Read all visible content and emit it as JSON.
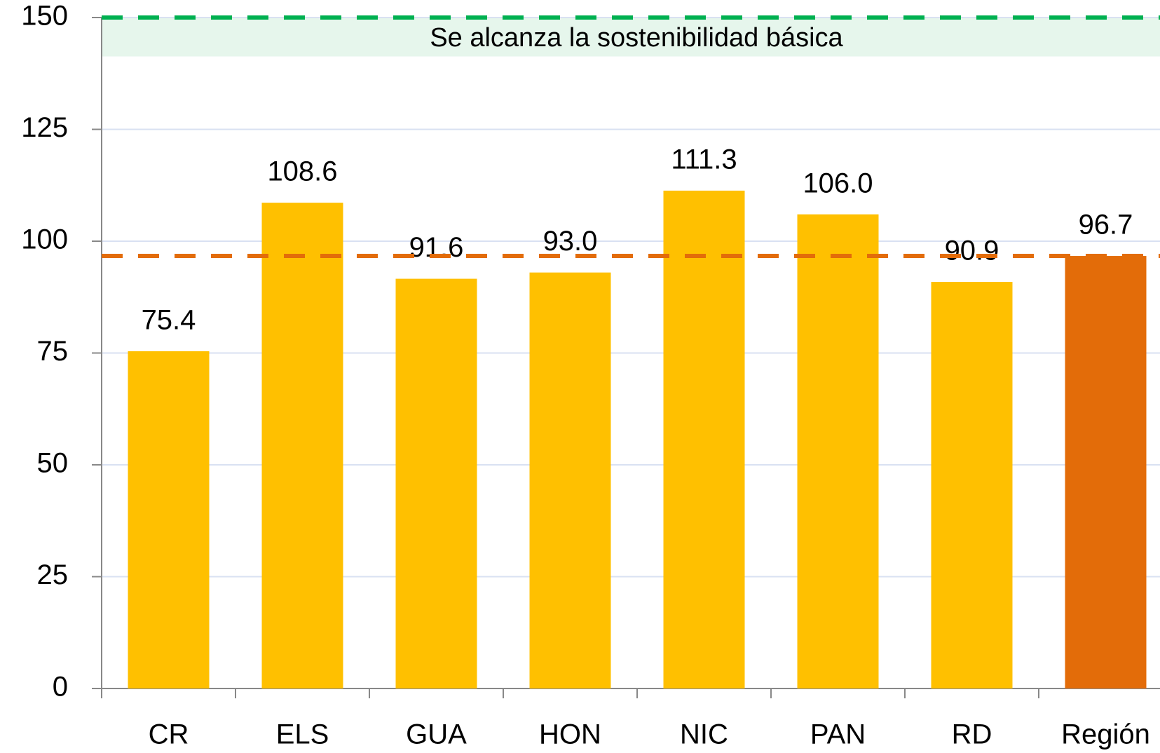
{
  "chart_data": {
    "type": "bar",
    "categories": [
      "CR",
      "ELS",
      "GUA",
      "HON",
      "NIC",
      "PAN",
      "RD",
      "Región"
    ],
    "values": [
      75.4,
      108.6,
      91.6,
      93.0,
      111.3,
      106.0,
      90.9,
      96.7
    ],
    "value_labels": [
      "75.4",
      "108.6",
      "91.6",
      "93.0",
      "111.3",
      "106.0",
      "90.9",
      "96.7"
    ],
    "colors": [
      "#FFC000",
      "#FFC000",
      "#FFC000",
      "#FFC000",
      "#FFC000",
      "#FFC000",
      "#FFC000",
      "#E36C09"
    ],
    "ylim": [
      0,
      150
    ],
    "yticks": [
      0,
      25,
      50,
      75,
      100,
      125,
      150
    ],
    "grid": true,
    "reference_lines": [
      {
        "value": 150,
        "color": "#00B050"
      },
      {
        "value": 96.7,
        "color": "#E36C09"
      }
    ],
    "band": {
      "from": 141.3,
      "to": 150,
      "color": "#E6F6EC"
    },
    "annotation": {
      "text": "Se alcanza la sostenibilidad básica",
      "color": "#00B050"
    }
  }
}
